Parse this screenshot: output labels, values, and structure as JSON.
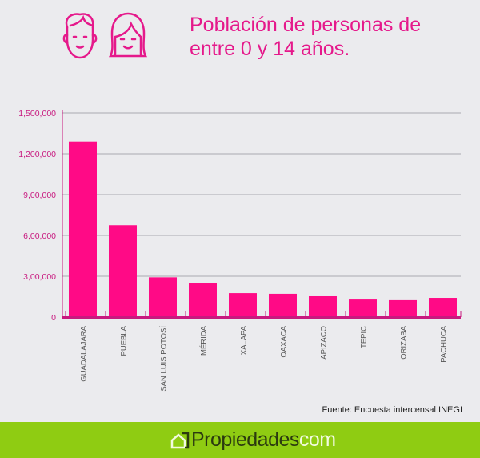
{
  "header": {
    "title": "Población de personas de entre 0 y 14 años.",
    "icons": [
      "boy-face-icon",
      "girl-face-icon"
    ]
  },
  "chart_data": {
    "type": "bar",
    "title": "Población de personas de entre 0 y 14 años.",
    "categories": [
      "GUADALAJARA",
      "PUEBLA",
      "SAN LUIS POTOSÍ",
      "MÉRIDA",
      "XALAPA",
      "OAXACA",
      "APIZACO",
      "TEPIC",
      "ORIZABA",
      "PACHUCA"
    ],
    "values": [
      1290000,
      675000,
      292000,
      247000,
      176000,
      171000,
      153000,
      129000,
      124000,
      141000
    ],
    "yticks": [
      0,
      300000,
      600000,
      900000,
      1200000,
      1500000
    ],
    "ytick_labels": [
      "0",
      "3,00,000",
      "6,00,000",
      "9,00,000",
      "1,200,000",
      "1,500,000"
    ],
    "ylim": [
      0,
      1500000
    ],
    "xlabel": "",
    "ylabel": "",
    "grid": true,
    "bar_color": "#ff0a86",
    "axis_color": "#c8197f",
    "tick_label_color": "#c8197f"
  },
  "source": "Fuente: Encuesta intercensal INEGI",
  "footer": {
    "brand": "Propiedades",
    "brand_suffix": "com",
    "brand_color": "#8fcc12"
  }
}
